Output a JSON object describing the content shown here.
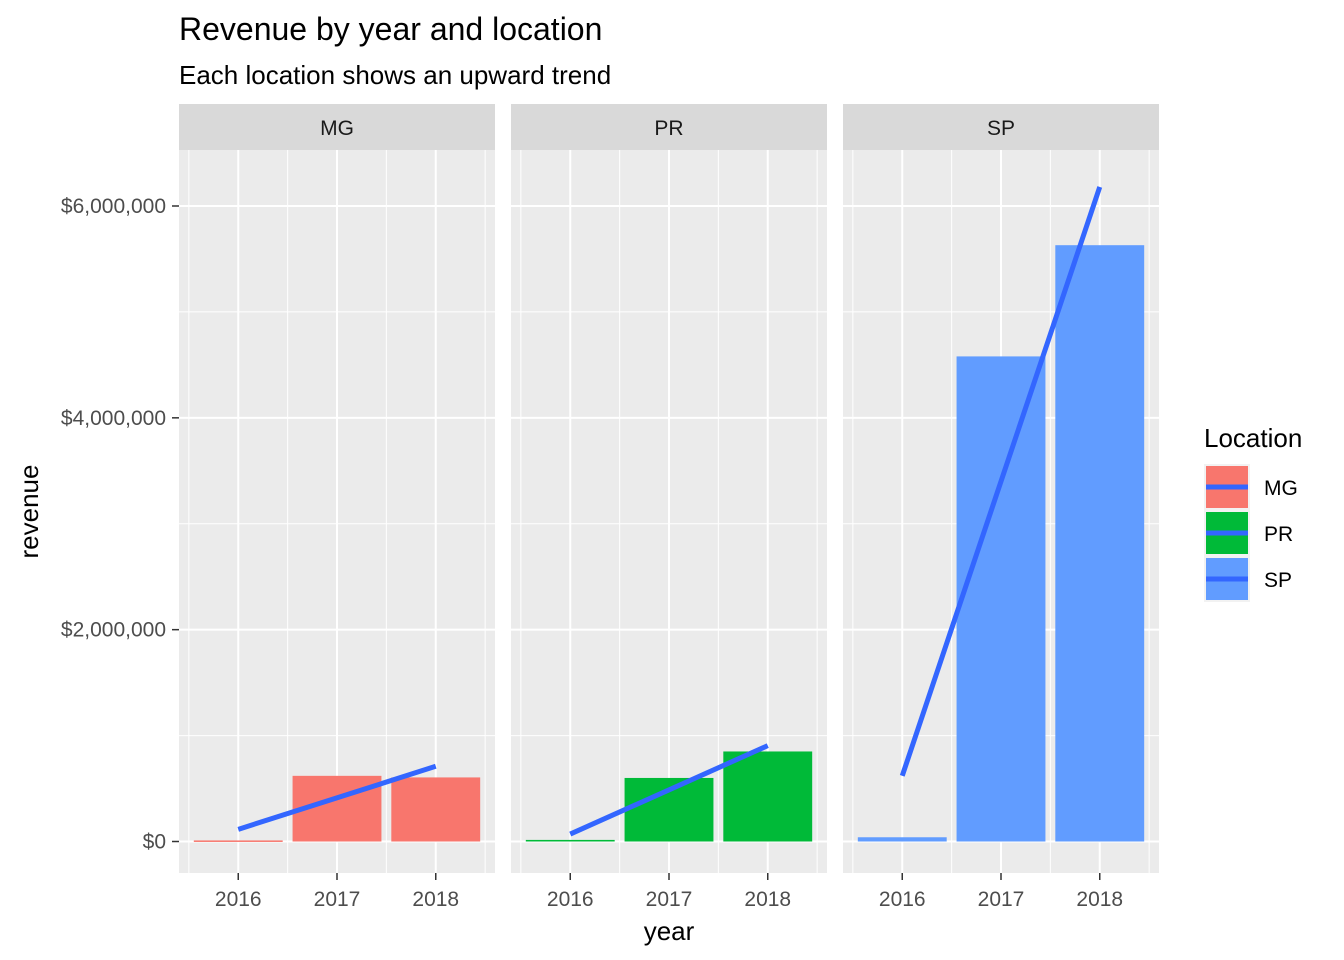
{
  "chart_data": {
    "type": "bar",
    "title": "Revenue by year and location",
    "subtitle": "Each location shows an upward trend",
    "xlabel": "year",
    "ylabel": "revenue",
    "ylim": [
      -300000,
      6600000
    ],
    "y_ticks": [
      0,
      2000000,
      4000000,
      6000000
    ],
    "y_tick_labels": [
      "$0",
      "$2,000,000",
      "$4,000,000",
      "$6,000,000"
    ],
    "categories": [
      "2016",
      "2017",
      "2018"
    ],
    "facets": [
      {
        "name": "MG",
        "color": "#F8766D",
        "values": [
          10000,
          620000,
          605000
        ],
        "trend": [
          115000,
          412500,
          710000
        ]
      },
      {
        "name": "PR",
        "color": "#00BA38",
        "values": [
          15000,
          600000,
          850000
        ],
        "trend": [
          70000,
          487500,
          905000
        ]
      },
      {
        "name": "SP",
        "color": "#619CFF",
        "values": [
          40000,
          4580000,
          5630000
        ],
        "trend": [
          620000,
          3400000,
          6180000
        ]
      }
    ],
    "trend_color": "#3366FF",
    "grid": true,
    "legend": {
      "title": "Location",
      "placement": "right",
      "entries": [
        "MG",
        "PR",
        "SP"
      ]
    }
  }
}
